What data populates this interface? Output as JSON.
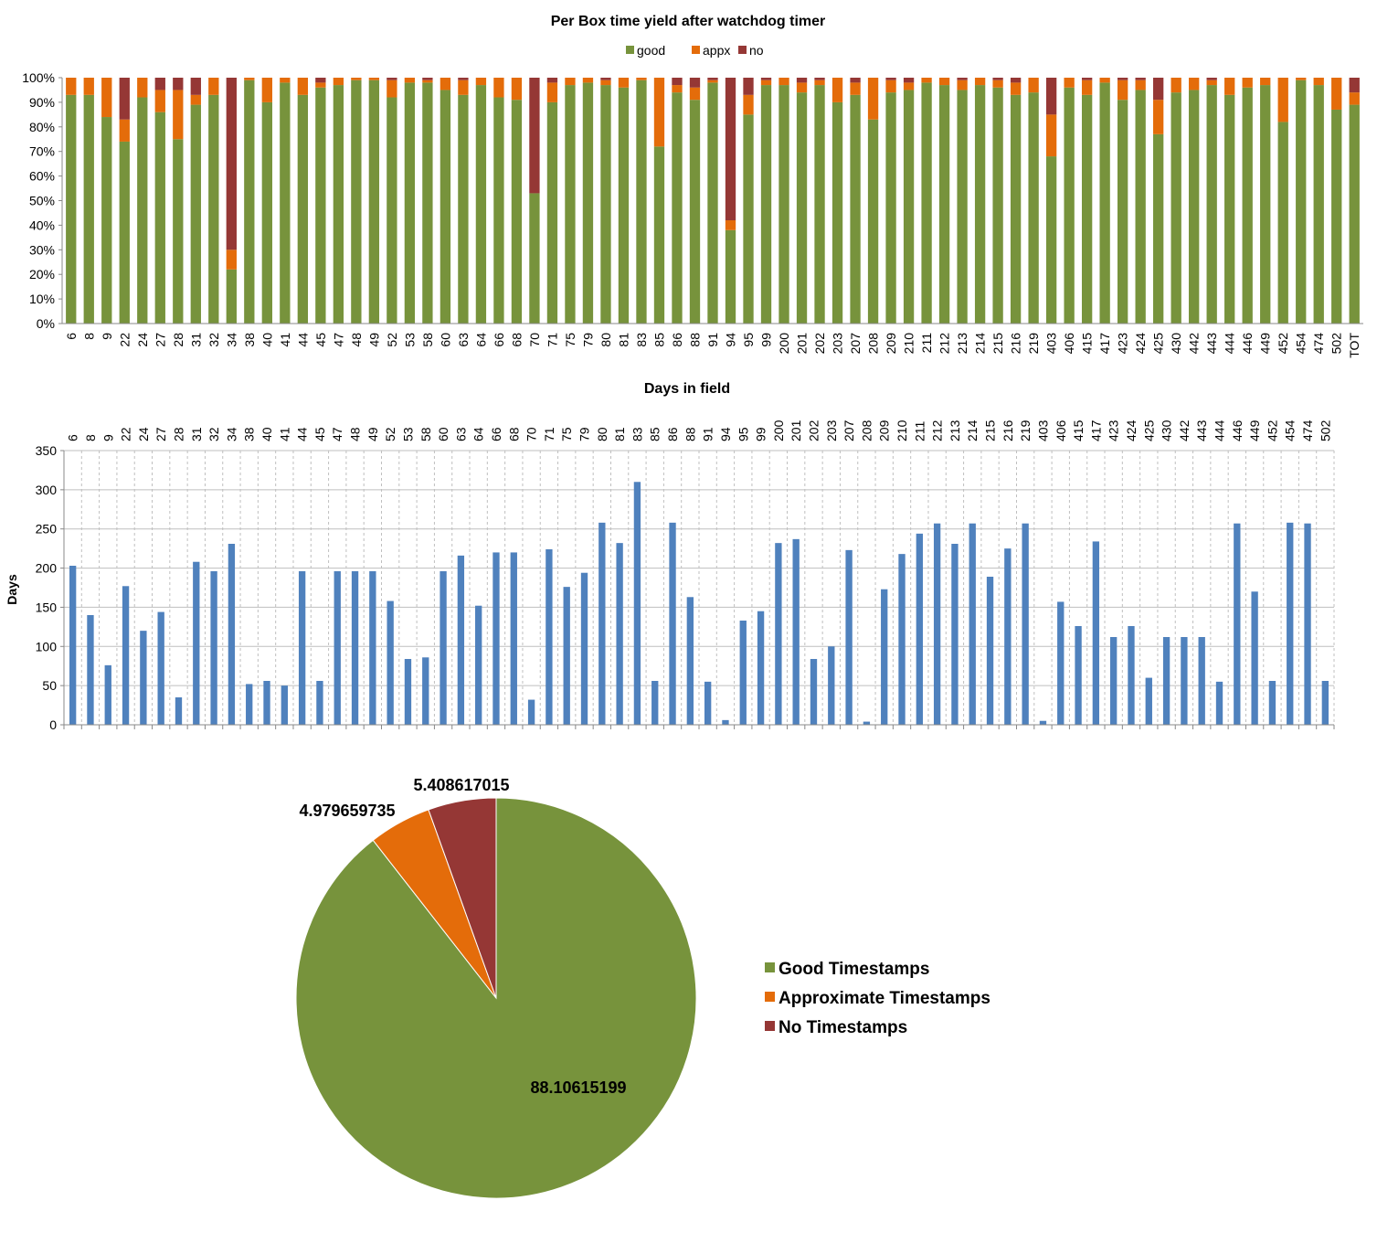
{
  "chart_data": [
    {
      "type": "bar",
      "stacked": true,
      "title": "Per Box time yield after watchdog timer",
      "xlabel": "",
      "ylabel": "",
      "ylim": [
        0,
        100
      ],
      "y_ticks": [
        "0%",
        "10%",
        "20%",
        "30%",
        "40%",
        "50%",
        "60%",
        "70%",
        "80%",
        "90%",
        "100%"
      ],
      "legend_position": "top",
      "grid": false,
      "categories": [
        "6",
        "8",
        "9",
        "22",
        "24",
        "27",
        "28",
        "31",
        "32",
        "34",
        "38",
        "40",
        "41",
        "44",
        "45",
        "47",
        "48",
        "49",
        "52",
        "53",
        "58",
        "60",
        "63",
        "64",
        "66",
        "68",
        "70",
        "71",
        "75",
        "79",
        "80",
        "81",
        "83",
        "85",
        "86",
        "88",
        "91",
        "94",
        "95",
        "99",
        "200",
        "201",
        "202",
        "203",
        "207",
        "208",
        "209",
        "210",
        "211",
        "212",
        "213",
        "214",
        "215",
        "216",
        "219",
        "403",
        "406",
        "415",
        "417",
        "423",
        "424",
        "425",
        "430",
        "442",
        "443",
        "444",
        "446",
        "449",
        "452",
        "454",
        "474",
        "502",
        "TOT"
      ],
      "series": [
        {
          "name": "good",
          "color": "#77933C",
          "values": [
            93,
            93,
            84,
            74,
            92,
            86,
            75,
            89,
            93,
            22,
            99,
            90,
            98,
            93,
            96,
            97,
            99,
            99,
            92,
            98,
            98,
            95,
            93,
            97,
            92,
            91,
            53,
            90,
            97,
            98,
            97,
            96,
            99,
            72,
            94,
            91,
            98,
            38,
            85,
            97,
            97,
            94,
            97,
            90,
            93,
            83,
            94,
            95,
            98,
            97,
            95,
            97,
            96,
            93,
            94,
            68,
            96,
            93,
            98,
            91,
            95,
            77,
            94,
            95,
            97,
            93,
            96,
            97,
            82,
            99,
            97,
            87,
            89
          ]
        },
        {
          "name": "appx",
          "color": "#E46C0A",
          "values": [
            7,
            7,
            16,
            9,
            8,
            9,
            20,
            4,
            7,
            8,
            1,
            10,
            2,
            7,
            2,
            3,
            1,
            1,
            7,
            2,
            1,
            5,
            6,
            3,
            8,
            9,
            0,
            8,
            3,
            2,
            2,
            4,
            1,
            28,
            3,
            5,
            1,
            4,
            8,
            2,
            3,
            4,
            2,
            10,
            5,
            17,
            5,
            3,
            2,
            3,
            4,
            3,
            3,
            5,
            6,
            17,
            4,
            6,
            2,
            8,
            4,
            14,
            6,
            5,
            2,
            7,
            4,
            3,
            18,
            1,
            3,
            13,
            5
          ]
        },
        {
          "name": "no",
          "color": "#953735",
          "values": [
            0,
            0,
            0,
            17,
            0,
            5,
            5,
            7,
            0,
            70,
            0,
            0,
            0,
            0,
            2,
            0,
            0,
            0,
            1,
            0,
            1,
            0,
            1,
            0,
            0,
            0,
            47,
            2,
            0,
            0,
            1,
            0,
            0,
            0,
            3,
            4,
            1,
            58,
            7,
            1,
            0,
            2,
            1,
            0,
            2,
            0,
            1,
            2,
            0,
            0,
            1,
            0,
            1,
            2,
            0,
            15,
            0,
            1,
            0,
            1,
            1,
            9,
            0,
            0,
            1,
            0,
            0,
            0,
            0,
            0,
            0,
            0,
            6
          ]
        }
      ]
    },
    {
      "type": "bar",
      "title": "Days in field",
      "xlabel": "",
      "ylabel": "Days",
      "ylim": [
        0,
        350
      ],
      "y_ticks": [
        "0",
        "50",
        "100",
        "150",
        "200",
        "250",
        "300",
        "350"
      ],
      "grid": true,
      "color": "#4F81BD",
      "categories": [
        "6",
        "8",
        "9",
        "22",
        "24",
        "27",
        "28",
        "31",
        "32",
        "34",
        "38",
        "40",
        "41",
        "44",
        "45",
        "47",
        "48",
        "49",
        "52",
        "53",
        "58",
        "60",
        "63",
        "64",
        "66",
        "68",
        "70",
        "71",
        "75",
        "79",
        "80",
        "81",
        "83",
        "85",
        "86",
        "88",
        "91",
        "94",
        "95",
        "99",
        "200",
        "201",
        "202",
        "203",
        "207",
        "208",
        "209",
        "210",
        "211",
        "212",
        "213",
        "214",
        "215",
        "216",
        "219",
        "403",
        "406",
        "415",
        "417",
        "423",
        "424",
        "425",
        "430",
        "442",
        "443",
        "444",
        "446",
        "449",
        "452",
        "454",
        "474",
        "502"
      ],
      "values": [
        203,
        140,
        76,
        177,
        120,
        144,
        35,
        208,
        196,
        231,
        52,
        56,
        50,
        196,
        56,
        196,
        196,
        196,
        158,
        84,
        86,
        196,
        216,
        152,
        220,
        220,
        32,
        224,
        176,
        194,
        258,
        232,
        310,
        56,
        258,
        163,
        55,
        6,
        133,
        145,
        232,
        237,
        84,
        100,
        223,
        4,
        173,
        218,
        244,
        257,
        231,
        257,
        189,
        225,
        257,
        5,
        157,
        126,
        234,
        112,
        126,
        60,
        112,
        112,
        112,
        55,
        257,
        170,
        56,
        258,
        257,
        56
      ]
    },
    {
      "type": "pie",
      "title": "",
      "legend_position": "right",
      "labels": [
        "Good Timestamps",
        "Approximate Timestamps",
        "No Timestamps"
      ],
      "values": [
        88.10615199,
        4.979659735,
        5.408617015
      ],
      "data_labels": [
        "88.10615199",
        "4.979659735",
        "5.408617015"
      ],
      "colors": [
        "#77933C",
        "#E46C0A",
        "#953735"
      ]
    }
  ]
}
